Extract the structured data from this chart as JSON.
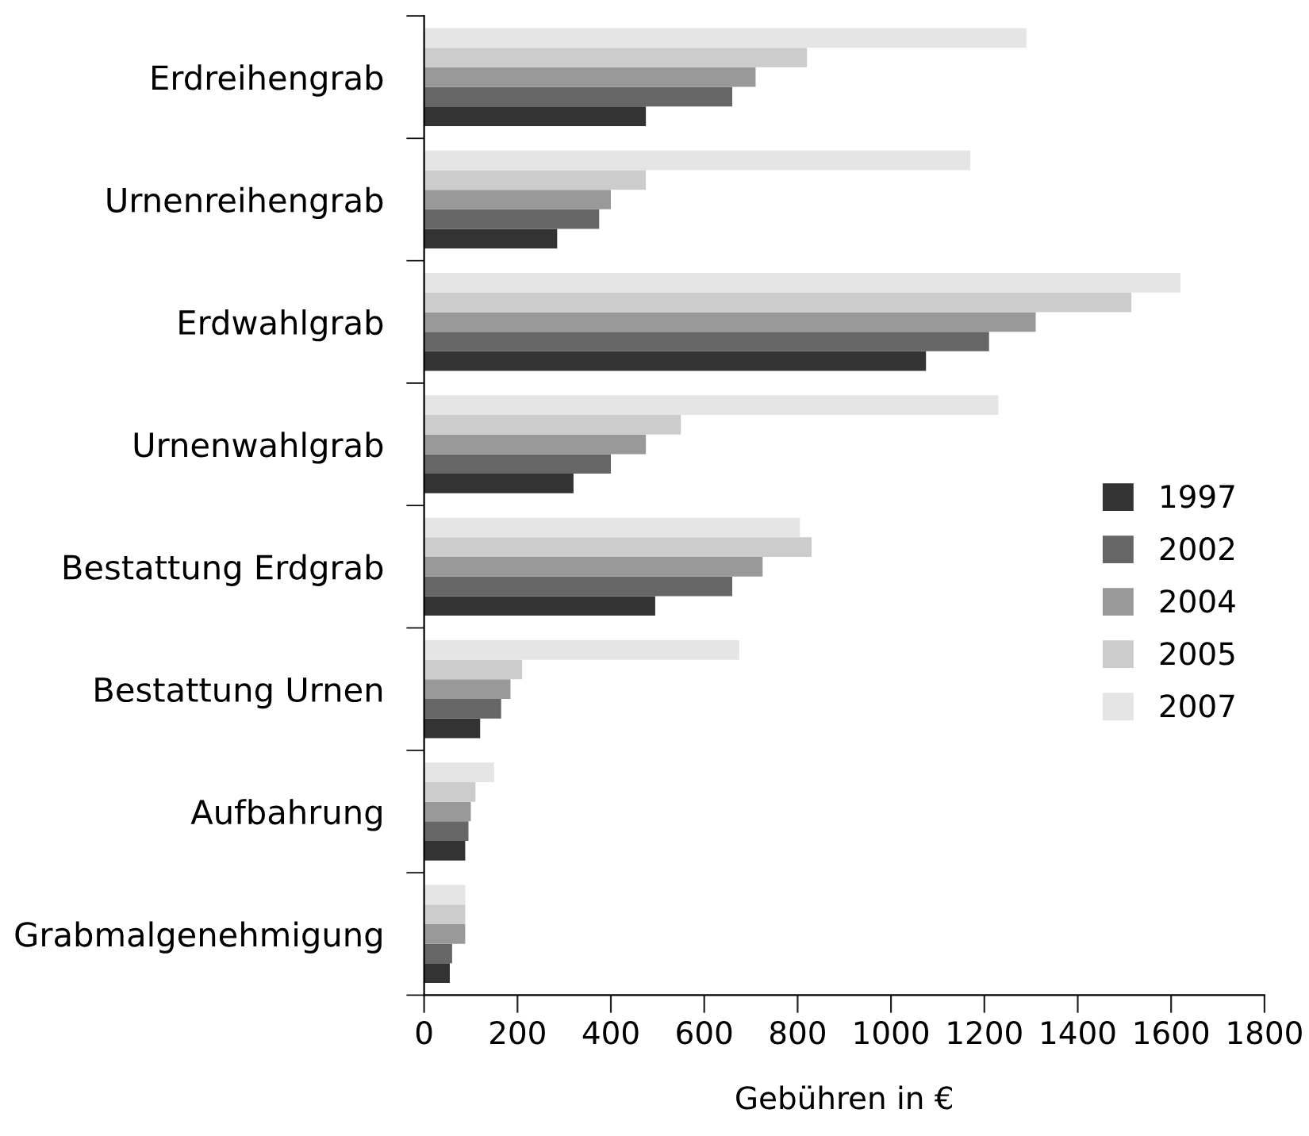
{
  "chart_data": {
    "type": "bar",
    "orientation": "horizontal",
    "xlabel": "Gebühren in €",
    "categories": [
      "Erdreihengrab",
      "Urnenreihengrab",
      "Erdwahlgrab",
      "Urnenwahlgrab",
      "Bestattung Erdgrab",
      "Bestattung Urnen",
      "Aufbahrung",
      "Grabmalgenehmigung"
    ],
    "series": [
      {
        "name": "1997",
        "color": "#333333",
        "values": [
          475,
          285,
          1075,
          320,
          495,
          120,
          88,
          55
        ]
      },
      {
        "name": "2002",
        "color": "#666666",
        "values": [
          660,
          375,
          1210,
          400,
          660,
          165,
          95,
          60
        ]
      },
      {
        "name": "2004",
        "color": "#999999",
        "values": [
          710,
          400,
          1310,
          475,
          725,
          185,
          100,
          88
        ]
      },
      {
        "name": "2005",
        "color": "#cccccc",
        "values": [
          820,
          475,
          1515,
          550,
          830,
          210,
          110,
          88
        ]
      },
      {
        "name": "2007",
        "color": "#e5e5e5",
        "values": [
          1290,
          1170,
          1620,
          1230,
          805,
          675,
          150,
          88
        ]
      }
    ],
    "xlim": [
      0,
      1800
    ],
    "xticks": [
      0,
      200,
      400,
      600,
      800,
      1000,
      1200,
      1400,
      1600,
      1800
    ],
    "grid": false,
    "legend": "right"
  }
}
